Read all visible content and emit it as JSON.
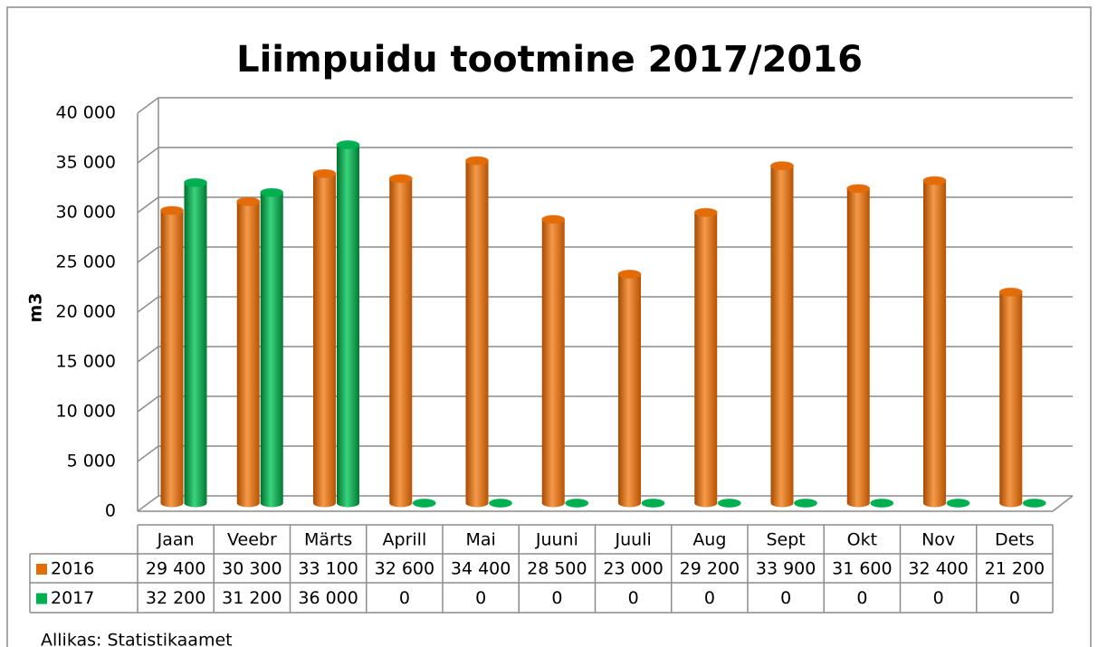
{
  "chart_data": {
    "type": "bar",
    "title": "Liimpuidu tootmine 2017/2016",
    "y_label": "m3",
    "source": "Allikas: Statistikaamet",
    "categories": [
      "Jaan",
      "Veebr",
      "Märts",
      "Aprill",
      "Mai",
      "Juuni",
      "Juuli",
      "Aug",
      "Sept",
      "Okt",
      "Nov",
      "Dets"
    ],
    "series": [
      {
        "name": "2016",
        "color": "#e36c09",
        "values": [
          29400,
          30300,
          33100,
          32600,
          34400,
          28500,
          23000,
          29200,
          33900,
          31600,
          32400,
          21200
        ],
        "value_labels": [
          "29 400",
          "30 300",
          "33 100",
          "32 600",
          "34 400",
          "28 500",
          "23 000",
          "29 200",
          "33 900",
          "31 600",
          "32 400",
          "21 200"
        ]
      },
      {
        "name": "2017",
        "color": "#00b050",
        "values": [
          32200,
          31200,
          36000,
          0,
          0,
          0,
          0,
          0,
          0,
          0,
          0,
          0
        ],
        "value_labels": [
          "32 200",
          "31 200",
          "36 000",
          "0",
          "0",
          "0",
          "0",
          "0",
          "0",
          "0",
          "0",
          "0"
        ]
      }
    ],
    "ylim": [
      0,
      40000
    ],
    "yticks": [
      0,
      {
        "value": 5000,
        "label": "5 000"
      },
      {
        "value": 10000,
        "label": "10 000"
      },
      {
        "value": 15000,
        "label": "15 000"
      },
      {
        "value": 20000,
        "label": "20 000"
      },
      {
        "value": 25000,
        "label": "25 000"
      },
      {
        "value": 30000,
        "label": "30 000"
      },
      {
        "value": 35000,
        "label": "35 000"
      },
      {
        "value": 40000,
        "label": "40 000"
      }
    ],
    "grid": true
  }
}
